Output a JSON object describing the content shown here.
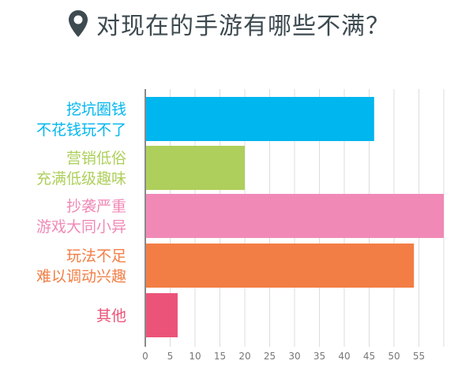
{
  "title": "对现在的手游有哪些不满？",
  "icon": "map-pin-icon",
  "icon_color": "#3d4a50",
  "chart_data": {
    "type": "bar",
    "orientation": "horizontal",
    "title": "对现在的手游有哪些不满？",
    "categories": [
      {
        "lines": [
          "挖坑圈钱",
          "不花钱玩不了"
        ],
        "value": 46,
        "color": "#00b6ef"
      },
      {
        "lines": [
          "营销低俗",
          "充满低级趣味"
        ],
        "value": 20,
        "color": "#aecf5b"
      },
      {
        "lines": [
          "抄袭严重",
          "游戏大同小异"
        ],
        "value": 60,
        "color": "#f189b7"
      },
      {
        "lines": [
          "玩法不足",
          "难以调动兴趣"
        ],
        "value": 54,
        "color": "#f27e45"
      },
      {
        "lines": [
          "其他"
        ],
        "value": 6.5,
        "color": "#ec5379"
      }
    ],
    "xticks": [
      "0",
      "5",
      "10",
      "15",
      "20",
      "25",
      "30",
      "35",
      "40",
      "45",
      "50",
      "55"
    ],
    "xlim": [
      0,
      60
    ],
    "grid": true,
    "legend": "none"
  }
}
